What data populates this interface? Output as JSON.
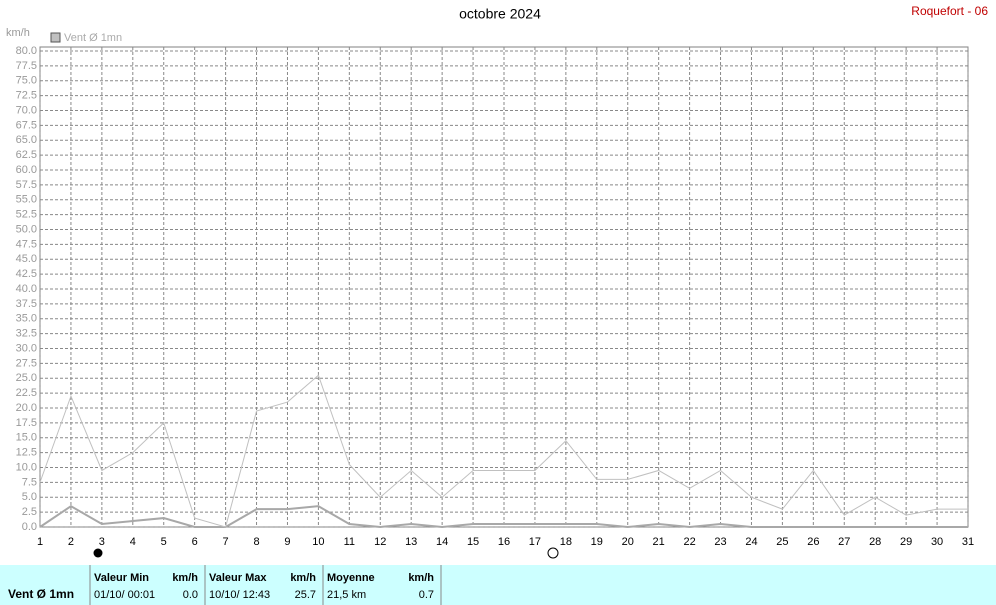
{
  "chart_data": {
    "type": "line",
    "title": "octobre 2024",
    "station": "Roquefort - 06",
    "y_label": "km/h",
    "legend": {
      "label": "Vent Ø 1mn",
      "color": "#c0c0c0"
    },
    "x": [
      1,
      2,
      3,
      4,
      5,
      6,
      7,
      8,
      9,
      10,
      11,
      12,
      13,
      14,
      15,
      16,
      17,
      18,
      19,
      20,
      21,
      22,
      23,
      24,
      25,
      26,
      27,
      28,
      29,
      30,
      31
    ],
    "xlim": [
      1,
      31
    ],
    "xticks": [
      1,
      2,
      3,
      4,
      5,
      6,
      7,
      8,
      9,
      10,
      11,
      12,
      13,
      14,
      15,
      16,
      17,
      18,
      19,
      20,
      21,
      22,
      23,
      24,
      25,
      26,
      27,
      28,
      29,
      30,
      31
    ],
    "series": [
      {
        "color": "#c0c0c0",
        "width": 1,
        "values": [
          7.5,
          22,
          9.5,
          12.5,
          17.5,
          1.5,
          0,
          19.5,
          21,
          25.5,
          10.5,
          5,
          9.5,
          5,
          9.5,
          9.5,
          9.5,
          14.5,
          8,
          8,
          9.5,
          6.5,
          9.5,
          5,
          3,
          9.5,
          2,
          5,
          2,
          3,
          3
        ]
      },
      {
        "color": "#a8a8a8",
        "width": 2,
        "values": [
          0,
          3.5,
          0.5,
          1,
          1.5,
          0,
          0,
          3,
          3,
          3.5,
          0.5,
          0,
          0.5,
          0,
          0.5,
          0.5,
          0.5,
          0.5,
          0.5,
          0,
          0.5,
          0,
          0.5,
          0,
          0,
          0,
          0,
          0,
          0,
          0,
          0
        ]
      }
    ],
    "ylim": [
      0,
      80
    ],
    "yticks": [
      {
        "value": 0,
        "label": "0.0"
      },
      {
        "value": 2.5,
        "label": "2.5"
      },
      {
        "value": 5,
        "label": "5.0"
      },
      {
        "value": 7.5,
        "label": "7.5"
      },
      {
        "value": 10,
        "label": "10.0"
      },
      {
        "value": 12.5,
        "label": "12.5"
      },
      {
        "value": 15,
        "label": "15.0"
      },
      {
        "value": 17.5,
        "label": "17.5"
      },
      {
        "value": 20,
        "label": "20.0"
      },
      {
        "value": 22.5,
        "label": "22.5"
      },
      {
        "value": 25,
        "label": "25.0"
      },
      {
        "value": 27.5,
        "label": "27.5"
      },
      {
        "value": 30,
        "label": "30.0"
      },
      {
        "value": 32.5,
        "label": "32.5"
      },
      {
        "value": 35,
        "label": "35.0"
      },
      {
        "value": 37.5,
        "label": "37.5"
      },
      {
        "value": 40,
        "label": "40.0"
      },
      {
        "value": 42.5,
        "label": "42.5"
      },
      {
        "value": 45,
        "label": "45.0"
      },
      {
        "value": 47.5,
        "label": "47.5"
      },
      {
        "value": 50,
        "label": "50.0"
      },
      {
        "value": 52.5,
        "label": "52.5"
      },
      {
        "value": 55,
        "label": "55.0"
      },
      {
        "value": 57.5,
        "label": "57.5"
      },
      {
        "value": 60,
        "label": "60.0"
      },
      {
        "value": 62.5,
        "label": "62.5"
      },
      {
        "value": 65,
        "label": "65.0"
      },
      {
        "value": 67.5,
        "label": "67.5"
      },
      {
        "value": 70,
        "label": "70.0"
      },
      {
        "value": 72.5,
        "label": "72.5"
      },
      {
        "value": 75,
        "label": "75.0"
      },
      {
        "value": 77.5,
        "label": "77.5"
      },
      {
        "value": 80,
        "label": "80.0"
      }
    ],
    "grid": true
  },
  "summary": {
    "title": "Vent Ø 1mn",
    "columns": [
      {
        "header": "Valeur Min",
        "unit": "km/h",
        "when": "01/10/  00:01",
        "value": "0.0"
      },
      {
        "header": "Valeur Max",
        "unit": "km/h",
        "when": "10/10/  12:43",
        "value": "25.7"
      },
      {
        "header": "Moyenne",
        "unit": "km/h",
        "when": "21,5 km",
        "value": "0.7"
      }
    ]
  }
}
